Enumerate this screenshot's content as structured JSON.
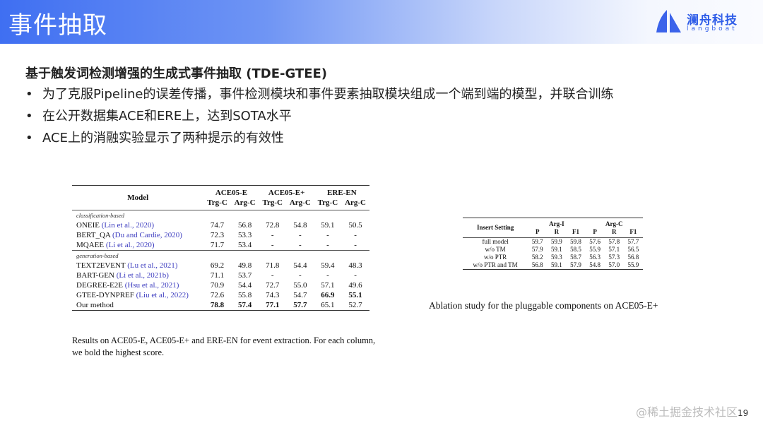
{
  "header": {
    "title": "事件抽取",
    "logo_cn": "澜舟科技",
    "logo_en": "langboat"
  },
  "content": {
    "heading": "基于触发词检测增强的生成式事件抽取 (TDE-GTEE)",
    "bullets": [
      "为了克服Pipeline的误差传播，事件检测模块和事件要素抽取模块组成一个端到端的模型，并联合训练",
      "在公开数据集ACE和ERE上，达到SOTA水平",
      "ACE上的消融实验显示了两种提示的有效性"
    ]
  },
  "table1": {
    "model_header": "Model",
    "groups": [
      "ACE05-E",
      "ACE05-E+",
      "ERE-EN"
    ],
    "subheaders": [
      "Trg-C",
      "Arg-C",
      "Trg-C",
      "Arg-C",
      "Trg-C",
      "Arg-C"
    ],
    "section1": "classification-based",
    "section2": "generation-based",
    "rows": [
      {
        "name": "ONEIE",
        "cite": "(Lin et al., 2020)",
        "vals": [
          "74.7",
          "56.8",
          "72.8",
          "54.8",
          "59.1",
          "50.5"
        ]
      },
      {
        "name": "BERT_QA",
        "cite": "(Du and Cardie, 2020)",
        "vals": [
          "72.3",
          "53.3",
          "-",
          "-",
          "-",
          "-"
        ]
      },
      {
        "name": "MQAEE",
        "cite": "(Li et al., 2020)",
        "vals": [
          "71.7",
          "53.4",
          "-",
          "-",
          "-",
          "-"
        ]
      },
      {
        "name": "TEXT2EVENT",
        "cite": "(Lu et al., 2021)",
        "vals": [
          "69.2",
          "49.8",
          "71.8",
          "54.4",
          "59.4",
          "48.3"
        ]
      },
      {
        "name": "BART-GEN",
        "cite": "(Li et al., 2021b)",
        "vals": [
          "71.1",
          "53.7",
          "-",
          "-",
          "-",
          "-"
        ]
      },
      {
        "name": "DEGREE-E2E",
        "cite": "(Hsu et al., 2021)",
        "vals": [
          "70.9",
          "54.4",
          "72.7",
          "55.0",
          "57.1",
          "49.6"
        ]
      },
      {
        "name": "GTEE-DYNPREF",
        "cite": "(Liu et al., 2022)",
        "vals": [
          "72.6",
          "55.8",
          "74.3",
          "54.7",
          "66.9",
          "55.1"
        ],
        "bold": [
          4,
          5
        ]
      },
      {
        "name": "Our method",
        "cite": "",
        "vals": [
          "78.8",
          "57.4",
          "77.1",
          "57.7",
          "65.1",
          "52.7"
        ],
        "bold": [
          0,
          1,
          2,
          3
        ]
      }
    ],
    "caption": "Results on ACE05-E, ACE05-E+ and ERE-EN for event extraction. For each column, we bold the highest score."
  },
  "table2": {
    "setting_header": "Insert Setting",
    "groups": [
      "Arg-I",
      "Arg-C"
    ],
    "subheaders": [
      "P",
      "R",
      "F1",
      "P",
      "R",
      "F1"
    ],
    "rows": [
      {
        "name": "full model",
        "vals": [
          "59.7",
          "59.9",
          "59.8",
          "57.6",
          "57.8",
          "57.7"
        ]
      },
      {
        "name": "w/o TM",
        "vals": [
          "57.9",
          "59.1",
          "58.5",
          "55.9",
          "57.1",
          "56.5"
        ]
      },
      {
        "name": "w/o PTR",
        "vals": [
          "58.2",
          "59.3",
          "58.7",
          "56.3",
          "57.3",
          "56.8"
        ]
      },
      {
        "name": "w/o PTR and TM",
        "vals": [
          "56.8",
          "59.1",
          "57.9",
          "54.8",
          "57.0",
          "55.9"
        ]
      }
    ],
    "caption": "Ablation study for the pluggable components on ACE05-E+"
  },
  "footer": {
    "page": "19",
    "watermark": "@稀土掘金技术社区"
  }
}
